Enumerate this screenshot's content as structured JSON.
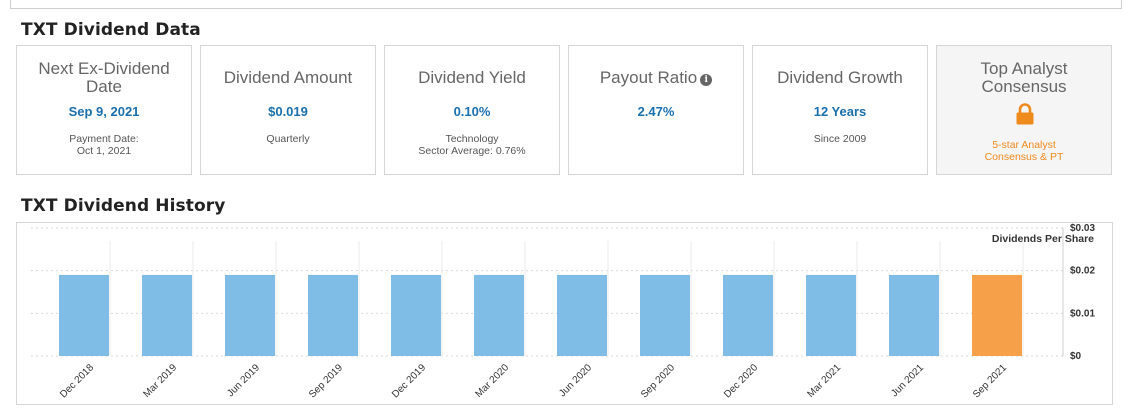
{
  "sections": {
    "dividend_data_title": "TXT Dividend Data",
    "dividend_history_title": "TXT Dividend History"
  },
  "cards": [
    {
      "label": "Next Ex-Dividend Date",
      "label_lines": [
        "Next Ex-Dividend",
        "Date"
      ],
      "value": "Sep 9, 2021",
      "sub_lines": [
        "Payment Date:",
        "Oct 1, 2021"
      ]
    },
    {
      "label": "Dividend Amount",
      "label_lines": [
        "Dividend Amount"
      ],
      "value": "$0.019",
      "sub_lines": [
        "Quarterly"
      ]
    },
    {
      "label": "Dividend Yield",
      "label_lines": [
        "Dividend Yield"
      ],
      "value": "0.10%",
      "sub_lines": [
        "Technology",
        "Sector Average: 0.76%"
      ]
    },
    {
      "label": "Payout Ratio",
      "label_lines": [
        "Payout Ratio"
      ],
      "value": "2.47%",
      "sub_lines": [],
      "icon": "info-icon",
      "icon_glyph": "i"
    },
    {
      "label": "Dividend Growth",
      "label_lines": [
        "Dividend Growth"
      ],
      "value": "12 Years",
      "sub_lines": [
        "Since 2009"
      ]
    },
    {
      "label": "Top Analyst Consensus",
      "label_lines": [
        "Top Analyst",
        "Consensus"
      ],
      "value": "",
      "sub_lines": [
        "5-star Analyst",
        "Consensus & PT"
      ],
      "icon": "lock-icon",
      "locked": true
    }
  ],
  "colors": {
    "value_blue": "#1a6fae",
    "bar_past": "#7fbde7",
    "bar_upcoming": "#f7a04a",
    "lock_orange": "#ef8a1d"
  },
  "chart_data": {
    "type": "bar",
    "title": "",
    "ylabel": "Dividends Per Share",
    "xlabel": "",
    "categories": [
      "Dec 2018",
      "Mar 2019",
      "Jun 2019",
      "Sep 2019",
      "Dec 2019",
      "Mar 2020",
      "Jun 2020",
      "Sep 2020",
      "Dec 2020",
      "Mar 2021",
      "Jun 2021",
      "Sep 2021"
    ],
    "values": [
      0.019,
      0.019,
      0.019,
      0.019,
      0.019,
      0.019,
      0.019,
      0.019,
      0.019,
      0.019,
      0.019,
      0.019
    ],
    "highlight_last": true,
    "ylim": [
      0,
      0.03
    ],
    "y_ticks": [
      0,
      0.01,
      0.02,
      0.03
    ],
    "y_tick_labels": [
      "$0",
      "$0.01",
      "$0.02",
      "$0.03"
    ],
    "y_axis_side": "right",
    "grid": true
  }
}
